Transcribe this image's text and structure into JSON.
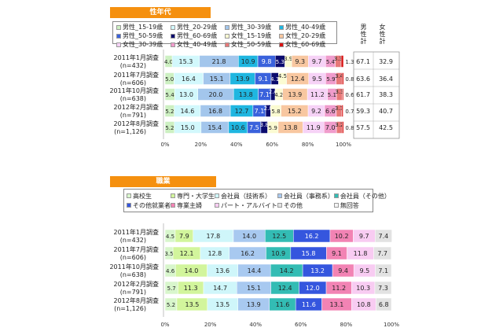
{
  "chart_data": [
    {
      "type": "bar",
      "stacked": true,
      "orientation": "horizontal",
      "title": "性年代",
      "categories": [
        "2011年1月調査",
        "2011年7月調査",
        "2011年10月調査",
        "2012年2月調査",
        "2012年8月調査"
      ],
      "sample_sizes": [
        "(n=432)",
        "(n=606)",
        "(n=638)",
        "(n=791)",
        "(n=1,126)"
      ],
      "series": [
        {
          "name": "男性_15-19歳",
          "color": "#cdf0c2",
          "values": [
            4.0,
            5.0,
            5.4,
            5.2,
            5.2
          ]
        },
        {
          "name": "男性_20-29歳",
          "color": "#d2f8fc",
          "values": [
            15.3,
            16.4,
            13.0,
            14.6,
            15.0
          ]
        },
        {
          "name": "男性_30-39歳",
          "color": "#a3c6ec",
          "values": [
            21.8,
            15.1,
            20.0,
            16.8,
            15.4
          ]
        },
        {
          "name": "男性_40-49歳",
          "color": "#1fb6e0",
          "values": [
            10.9,
            13.9,
            13.8,
            12.7,
            10.6
          ]
        },
        {
          "name": "男性_50-59歳",
          "color": "#3a62dc",
          "values": [
            9.8,
            9.1,
            7.1,
            7.1,
            7.5
          ]
        },
        {
          "name": "男性_60-69歳",
          "color": "#0b0b6e",
          "values": [
            5.3,
            4.1,
            2.4,
            2.8,
            3.8
          ]
        },
        {
          "name": "女性_15-19歳",
          "color": "#fbfbd2",
          "values": [
            3.9,
            4.5,
            4.2,
            5.8,
            5.9
          ]
        },
        {
          "name": "女性_20-29歳",
          "color": "#f8c7a0",
          "values": [
            9.3,
            12.4,
            13.9,
            15.2,
            13.8
          ]
        },
        {
          "name": "女性_30-39歳",
          "color": "#f6d2f6",
          "values": [
            9.7,
            9.5,
            11.2,
            9.2,
            11.9
          ]
        },
        {
          "name": "女性_40-49歳",
          "color": "#f09ccc",
          "values": [
            5.4,
            5.9,
            5.1,
            6.6,
            7.0
          ]
        },
        {
          "name": "女性_50-59歳",
          "color": "#e77878",
          "values": [
            3.3,
            3.4,
            3.3,
            3.1,
            3.2
          ]
        },
        {
          "name": "女性_60-69歳",
          "color": "#d81212",
          "values": [
            1.3,
            0.8,
            0.6,
            0.7,
            0.8
          ]
        }
      ],
      "totals_headers": [
        "男性計",
        "女性計"
      ],
      "totals": {
        "male": [
          67.1,
          63.6,
          61.7,
          59.3,
          57.5
        ],
        "female": [
          32.9,
          36.4,
          38.3,
          40.7,
          42.5
        ]
      },
      "xticks": [
        "0%",
        "20%",
        "40%",
        "60%",
        "80%",
        "100%"
      ],
      "xlim": [
        0,
        100
      ],
      "legend": "top"
    },
    {
      "type": "bar",
      "stacked": true,
      "orientation": "horizontal",
      "title": "職業",
      "categories": [
        "2011年1月調査",
        "2011年7月調査",
        "2011年10月調査",
        "2012年2月調査",
        "2012年8月調査"
      ],
      "sample_sizes": [
        "(n=432)",
        "(n=606)",
        "(n=638)",
        "(n=791)",
        "(n=1,126)"
      ],
      "series": [
        {
          "name": "高校生",
          "color": "#d8f6cc",
          "values": [
            4.5,
            3.5,
            4.6,
            5.7,
            5.2
          ]
        },
        {
          "name": "専門・大学生",
          "color": "#d2f59c",
          "values": [
            7.9,
            12.1,
            14.0,
            11.3,
            13.5
          ]
        },
        {
          "name": "会社員（技術系）",
          "color": "#cff6fa",
          "values": [
            17.8,
            12.8,
            13.6,
            14.7,
            13.5
          ]
        },
        {
          "name": "会社員（事務系）",
          "color": "#a8c9f0",
          "values": [
            14.0,
            16.2,
            14.4,
            15.1,
            13.9
          ]
        },
        {
          "name": "会社員（その他）",
          "color": "#33bcb4",
          "values": [
            12.5,
            10.9,
            14.2,
            12.4,
            11.6
          ]
        },
        {
          "name": "その他就業者",
          "color": "#3556de",
          "values": [
            16.2,
            15.8,
            13.2,
            12.0,
            11.6
          ]
        },
        {
          "name": "専業主婦",
          "color": "#f283b4",
          "values": [
            10.2,
            9.1,
            9.4,
            11.2,
            13.1
          ]
        },
        {
          "name": "パート・アルバイト",
          "color": "#f8ccf2",
          "values": [
            9.7,
            11.8,
            9.5,
            10.3,
            10.8
          ]
        },
        {
          "name": "その他",
          "color": "#e2e2e2",
          "values": [
            7.4,
            7.7,
            7.1,
            7.3,
            6.8
          ]
        },
        {
          "name": "無回答",
          "color": "#f4f4f4",
          "values": [
            0,
            0,
            0,
            0,
            0
          ]
        }
      ],
      "xticks": [
        "0%",
        "20%",
        "40%",
        "60%",
        "80%",
        "100%"
      ],
      "xlim": [
        0,
        100
      ],
      "legend": "top"
    }
  ]
}
